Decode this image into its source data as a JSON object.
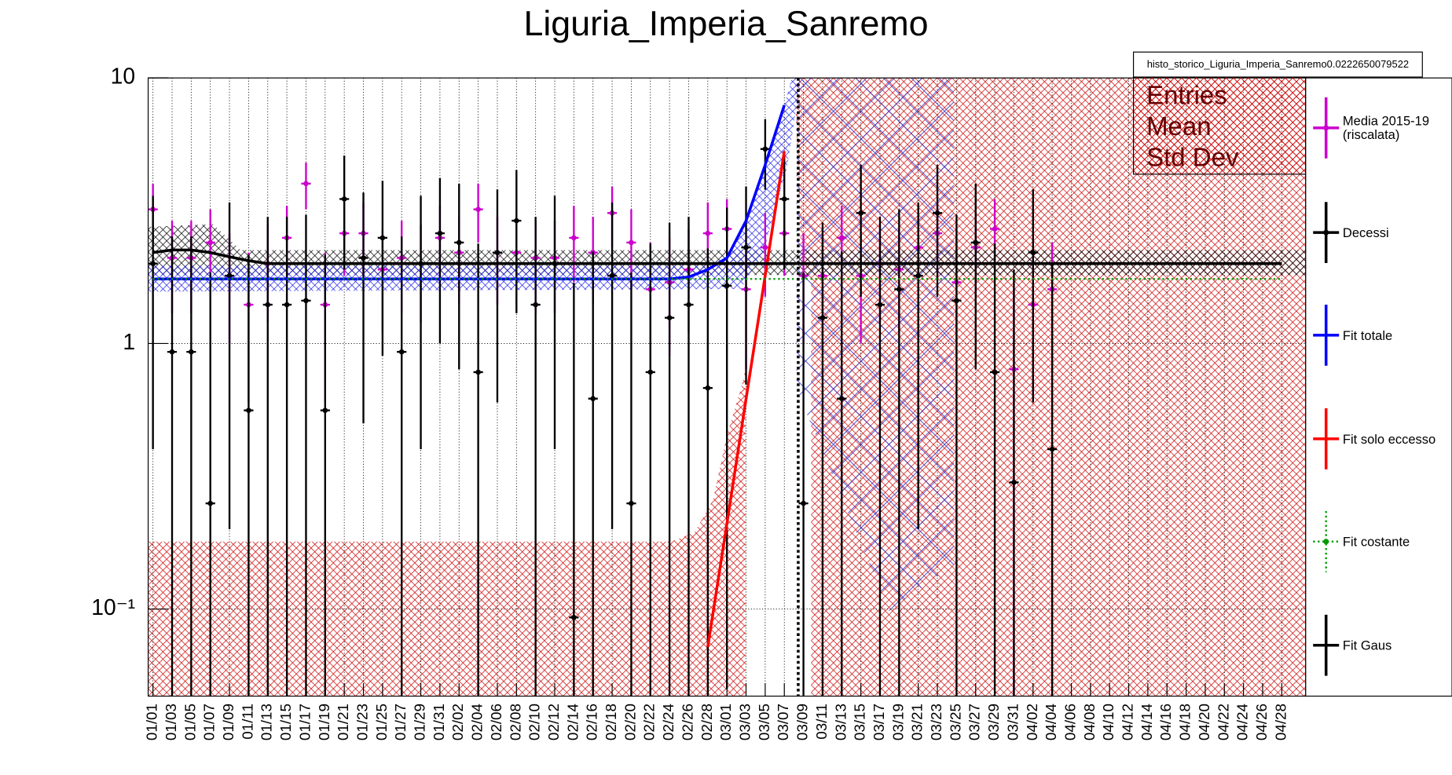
{
  "chart_data": {
    "type": "line",
    "title": "Liguria_Imperia_Sanremo",
    "stats_box": {
      "title": "histo_storico_Liguria_Imperia_Sanremo0.0222650079522",
      "labels": [
        "Entries",
        "Mean",
        "Std Dev"
      ]
    },
    "log_y": true,
    "grid": true,
    "ylim": [
      0.047,
      10
    ],
    "yticks": [
      {
        "value": 0.1,
        "label": "10⁻¹"
      },
      1,
      10
    ],
    "categories": [
      "01/01",
      "01/03",
      "01/05",
      "01/07",
      "01/09",
      "01/11",
      "01/13",
      "01/15",
      "01/17",
      "01/19",
      "01/21",
      "01/23",
      "01/25",
      "01/27",
      "01/29",
      "01/31",
      "02/02",
      "02/04",
      "02/06",
      "02/08",
      "02/10",
      "02/12",
      "02/14",
      "02/16",
      "02/18",
      "02/20",
      "02/22",
      "02/24",
      "02/26",
      "02/28",
      "03/01",
      "03/03",
      "03/05",
      "03/07",
      "03/09",
      "03/11",
      "03/13",
      "03/15",
      "03/17",
      "03/19",
      "03/21",
      "03/23",
      "03/25",
      "03/27",
      "03/29",
      "03/31",
      "04/02",
      "04/04",
      "04/06",
      "04/08",
      "04/10",
      "04/12",
      "04/14",
      "04/16",
      "04/18",
      "04/20",
      "04/22",
      "04/24",
      "04/26",
      "04/28"
    ],
    "series": [
      {
        "name": "Media 2015-19 (riscalata)",
        "color": "#cc00cc",
        "style": "points",
        "values": [
          3.2,
          2.1,
          2.1,
          2.4,
          1.8,
          1.4,
          2.0,
          2.5,
          4.0,
          1.4,
          2.6,
          2.6,
          1.9,
          2.1,
          2.0,
          2.5,
          2.2,
          3.2,
          2.2,
          2.2,
          2.1,
          2.1,
          2.5,
          2.2,
          3.1,
          2.4,
          1.6,
          1.7,
          1.9,
          2.6,
          2.7,
          1.6,
          2.3,
          2.6,
          1.8,
          1.8,
          2.5,
          1.8,
          2.0,
          1.9,
          2.3,
          2.6,
          1.7,
          2.3,
          2.7,
          0.8,
          1.4,
          1.6,
          null,
          null,
          null,
          null,
          null,
          null,
          null,
          null,
          null,
          null,
          null,
          null
        ],
        "errors": [
          0.8,
          0.8,
          0.8,
          0.8,
          0.8,
          0.8,
          0.8,
          0.8,
          0.8,
          0.8,
          0.8,
          0.8,
          0.8,
          0.8,
          0.8,
          0.8,
          0.8,
          0.8,
          0.8,
          0.8,
          0.8,
          0.8,
          0.8,
          0.8,
          0.8,
          0.8,
          0.8,
          0.8,
          0.8,
          0.8,
          0.8,
          0.8,
          0.8,
          0.8,
          0.8,
          0.8,
          0.8,
          0.8,
          0.8,
          0.8,
          0.8,
          0.8,
          0.8,
          0.8,
          0.8,
          0.8,
          0.8,
          0.8,
          null,
          null,
          null,
          null,
          null,
          null,
          null,
          null,
          null,
          null,
          null,
          null
        ]
      },
      {
        "name": "Decessi",
        "color": "#000000",
        "style": "points",
        "values": [
          2.0,
          0.93,
          0.93,
          0.25,
          1.8,
          0.56,
          1.4,
          1.4,
          1.45,
          0.56,
          3.5,
          2.1,
          2.5,
          0.93,
          2.0,
          2.6,
          2.4,
          0.78,
          2.2,
          2.9,
          1.4,
          2.0,
          0.093,
          0.62,
          1.8,
          0.25,
          0.78,
          1.25,
          1.4,
          0.68,
          1.65,
          2.3,
          5.4,
          3.5,
          0.25,
          1.25,
          0.62,
          3.1,
          1.4,
          1.6,
          1.8,
          3.1,
          1.45,
          2.4,
          0.78,
          0.3,
          2.2,
          0.4,
          null,
          null,
          null,
          null,
          null,
          null,
          null,
          null,
          null,
          null,
          null,
          null
        ],
        "errors": [
          1.6,
          1.6,
          1.6,
          1.6,
          1.6,
          1.6,
          1.6,
          1.6,
          1.6,
          1.6,
          1.6,
          1.6,
          1.6,
          1.6,
          1.6,
          1.6,
          1.6,
          1.6,
          1.6,
          1.6,
          1.6,
          1.6,
          1.6,
          1.6,
          1.6,
          1.6,
          1.6,
          1.6,
          1.6,
          1.6,
          1.6,
          1.6,
          1.6,
          1.6,
          1.6,
          1.6,
          1.6,
          1.6,
          1.6,
          1.6,
          1.6,
          1.6,
          1.6,
          1.6,
          1.6,
          1.6,
          1.6,
          1.6,
          null,
          null,
          null,
          null,
          null,
          null,
          null,
          null,
          null,
          null,
          null,
          null
        ]
      },
      {
        "name": "Fit totale",
        "color": "#0000ff",
        "style": "line",
        "values": [
          1.75,
          1.75,
          1.75,
          1.75,
          1.75,
          1.75,
          1.75,
          1.75,
          1.75,
          1.75,
          1.75,
          1.75,
          1.75,
          1.75,
          1.75,
          1.75,
          1.75,
          1.75,
          1.75,
          1.75,
          1.75,
          1.75,
          1.75,
          1.75,
          1.75,
          1.75,
          1.75,
          1.75,
          1.78,
          1.9,
          2.1,
          2.9,
          4.7,
          7.9,
          null,
          null,
          null,
          null,
          null,
          null,
          null,
          null,
          null,
          null,
          null,
          null,
          null,
          null,
          null,
          null,
          null,
          null,
          null,
          null,
          null,
          null,
          null,
          null,
          null,
          null
        ]
      },
      {
        "name": "Fit solo eccesso",
        "color": "#ff0000",
        "style": "line",
        "values": [
          null,
          null,
          null,
          null,
          null,
          null,
          null,
          null,
          null,
          null,
          null,
          null,
          null,
          null,
          null,
          null,
          null,
          null,
          null,
          null,
          null,
          null,
          null,
          null,
          null,
          null,
          null,
          null,
          null,
          0.072,
          0.21,
          0.62,
          1.8,
          5.3,
          null,
          null,
          null,
          null,
          null,
          null,
          null,
          null,
          null,
          null,
          null,
          null,
          null,
          null,
          null,
          null,
          null,
          null,
          null,
          null,
          null,
          null,
          null,
          null,
          null,
          null
        ]
      },
      {
        "name": "Fit costante",
        "color": "#009900",
        "style": "dotted",
        "values": [
          1.75,
          1.75,
          1.75,
          1.75,
          1.75,
          1.75,
          1.75,
          1.75,
          1.75,
          1.75,
          1.75,
          1.75,
          1.75,
          1.75,
          1.75,
          1.75,
          1.75,
          1.75,
          1.75,
          1.75,
          1.75,
          1.75,
          1.75,
          1.75,
          1.75,
          1.75,
          1.75,
          1.75,
          1.75,
          1.75,
          1.75,
          1.75,
          1.75,
          1.75,
          1.75,
          1.75,
          1.75,
          1.75,
          1.75,
          1.75,
          1.75,
          1.75,
          1.75,
          1.75,
          1.75,
          1.75,
          1.75,
          1.75,
          1.75,
          1.75,
          1.75,
          1.75,
          1.75,
          1.75,
          1.75,
          1.75,
          1.75,
          1.75,
          1.75,
          1.75
        ]
      },
      {
        "name": "Fit Gaus",
        "color": "#000000",
        "style": "line",
        "values": [
          2.2,
          2.25,
          2.25,
          2.2,
          2.12,
          2.05,
          2.0,
          2.0,
          2.0,
          2.0,
          2.0,
          2.0,
          2.0,
          2.0,
          2.0,
          2.0,
          2.0,
          2.0,
          2.0,
          2.0,
          2.0,
          2.0,
          2.0,
          2.0,
          2.0,
          2.0,
          2.0,
          2.0,
          2.0,
          2.0,
          2.0,
          2.0,
          2.0,
          2.0,
          2.0,
          2.0,
          2.0,
          2.0,
          2.0,
          2.0,
          2.0,
          2.0,
          2.0,
          2.0,
          2.0,
          2.0,
          2.0,
          2.0,
          2.0,
          2.0,
          2.0,
          2.0,
          2.0,
          2.0,
          2.0,
          2.0,
          2.0,
          2.0,
          2.0,
          2.0
        ]
      }
    ]
  }
}
